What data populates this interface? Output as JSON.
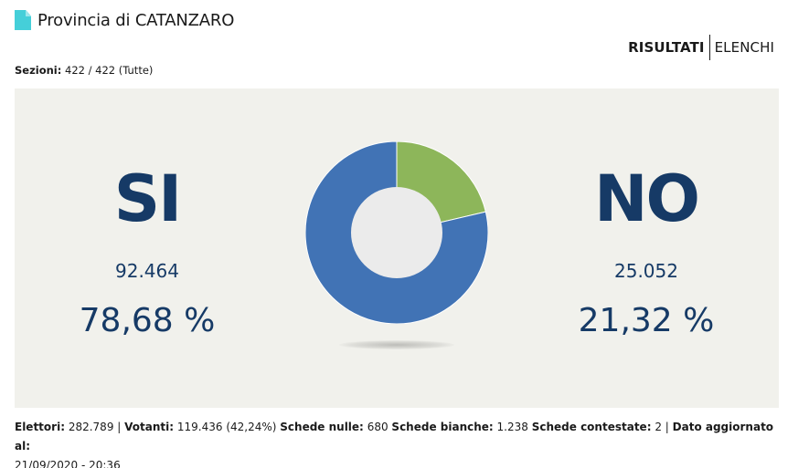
{
  "header": {
    "title": "Provincia di CATANZARO",
    "icon": "document-icon"
  },
  "tabs": {
    "active": "RISULTATI",
    "inactive": "ELENCHI"
  },
  "sezioni": {
    "label": "Sezioni:",
    "value": "422 / 422 (Tutte)"
  },
  "results": {
    "si": {
      "label": "SI",
      "votes": "92.464",
      "percent": "78,68 %"
    },
    "no": {
      "label": "NO",
      "votes": "25.052",
      "percent": "21,32 %"
    }
  },
  "chart_data": {
    "type": "pie",
    "slices": [
      {
        "label": "SI",
        "value": 78.68,
        "color": "#4173b5"
      },
      {
        "label": "NO",
        "value": 21.32,
        "color": "#8db65a"
      }
    ],
    "hole_color": "#ebebeb",
    "start": "top",
    "direction": "clockwise-from-NO"
  },
  "footer": {
    "elettori_label": "Elettori:",
    "elettori_value": "282.789 |",
    "votanti_label": "Votanti:",
    "votanti_value": "119.436 (42,24%)",
    "nulle_label": "Schede nulle:",
    "nulle_value": "680",
    "bianche_label": "Schede bianche:",
    "bianche_value": "1.238",
    "contestate_label": "Schede contestate:",
    "contestate_value": "2 |",
    "aggiornato_label": "Dato aggiornato al:",
    "aggiornato_value": "21/09/2020 - 20:36"
  },
  "colors": {
    "accent_text": "#163a66",
    "panel_bg": "#f1f1ec",
    "icon": "#45cfd9"
  }
}
